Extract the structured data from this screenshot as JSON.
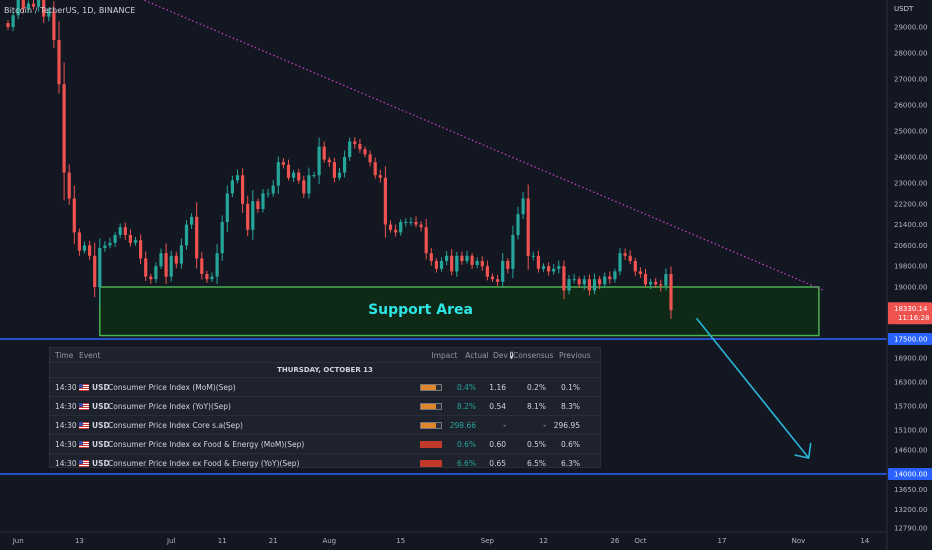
{
  "symbol": {
    "title": "Bitcoin / TetherUS, 1D, BINANCE"
  },
  "chart_data": {
    "type": "candlestick",
    "currency": "USDT",
    "y_ticks": [
      29000,
      28000,
      27000,
      26000,
      25000,
      24000,
      23000,
      22200,
      21400,
      20600,
      19800,
      19000,
      16900,
      16300,
      15700,
      15100,
      14600,
      13650,
      13200,
      12790
    ],
    "y_tick_labels": [
      "29000.00",
      "28000.00",
      "27000.00",
      "26000.00",
      "25000.00",
      "24000.00",
      "23000.00",
      "22200.00",
      "21400.00",
      "20600.00",
      "19800.00",
      "19000.00",
      "16900.00",
      "16300.00",
      "15700.00",
      "15100.00",
      "14600.00",
      "13650.00",
      "13200.00",
      "12790.00"
    ],
    "x_ticks": [
      {
        "date": "2022-06-01",
        "label": "Jun"
      },
      {
        "date": "2022-06-13",
        "label": "13"
      },
      {
        "date": "2022-07-01",
        "label": "Jul"
      },
      {
        "date": "2022-07-11",
        "label": "11"
      },
      {
        "date": "2022-07-21",
        "label": "21"
      },
      {
        "date": "2022-08-01",
        "label": "Aug"
      },
      {
        "date": "2022-08-15",
        "label": "15"
      },
      {
        "date": "2022-09-01",
        "label": "Sep"
      },
      {
        "date": "2022-09-12",
        "label": "12"
      },
      {
        "date": "2022-09-26",
        "label": "26"
      },
      {
        "date": "2022-10-01",
        "label": "Oct"
      },
      {
        "date": "2022-10-17",
        "label": "17"
      },
      {
        "date": "2022-11-01",
        "label": "Nov"
      },
      {
        "date": "2022-11-14",
        "label": "14"
      }
    ],
    "first_date": "2022-05-30",
    "closes": [
      29000,
      29450,
      30050,
      29700,
      29900,
      29780,
      30400,
      29400,
      29600,
      28500,
      26800,
      23400,
      22400,
      21100,
      20400,
      20600,
      20200,
      19000,
      20500,
      20600,
      20700,
      21000,
      21300,
      21000,
      20700,
      20800,
      20100,
      19400,
      19300,
      19800,
      20300,
      19400,
      20200,
      19900,
      20600,
      21400,
      21700,
      20100,
      19500,
      19300,
      19400,
      20300,
      21500,
      22600,
      23100,
      23300,
      22200,
      21200,
      22300,
      22000,
      22600,
      22600,
      22900,
      23800,
      23700,
      23200,
      23400,
      23100,
      22600,
      23300,
      23300,
      24400,
      23900,
      23800,
      23200,
      23400,
      24000,
      24600,
      24500,
      24300,
      24100,
      23800,
      23300,
      23200,
      21400,
      21200,
      21100,
      21500,
      21500,
      21500,
      21400,
      21300,
      20300,
      20000,
      19700,
      20000,
      20200,
      19600,
      20200,
      20000,
      20200,
      19850,
      20000,
      19800,
      19400,
      19300,
      19200,
      20000,
      19700,
      21000,
      21800,
      22400,
      20200,
      20200,
      19700,
      19800,
      19600,
      19700,
      19800,
      18900,
      19300,
      19300,
      19100,
      19300,
      18900,
      19300,
      19100,
      19400,
      19300,
      19600,
      20300,
      20200,
      20000,
      19600,
      19500,
      19100,
      19200,
      19100,
      19050,
      19500
    ],
    "last_close": 18330.14,
    "last_close_label": "18330.14",
    "countdown": "11:16:28",
    "trendline": {
      "from": {
        "date": "2022-06-07",
        "price": 31600
      },
      "to": {
        "date": "2022-11-06",
        "price": 18900
      }
    },
    "support_zone": {
      "from_date": "2022-06-17",
      "to_date": "2022-11-05",
      "top": 19000,
      "bottom": 17600,
      "label": "Support Area"
    },
    "horizontal_lines": [
      {
        "price": 17500,
        "label": "17500.00"
      },
      {
        "price": 14000,
        "label": "14000.00"
      }
    ],
    "arrow_projection": {
      "from": {
        "date": "2022-10-12",
        "price": 18100
      },
      "to": {
        "date": "2022-11-03",
        "price": 14400
      }
    }
  },
  "calendar": {
    "headers": {
      "time": "Time",
      "event": "Event",
      "impact": "Impact",
      "actual": "Actual",
      "dev": "Dev",
      "consensus": "Consensus",
      "previous": "Previous"
    },
    "day": "THURSDAY, OCTOBER 13",
    "rows": [
      {
        "time": "14:30",
        "currency": "USD",
        "event": "Consumer Price Index (MoM)(Sep)",
        "impact": "medium",
        "actual": "0.4%",
        "dev": "1.16",
        "consensus": "0.2%",
        "previous": "0.1%"
      },
      {
        "time": "14:30",
        "currency": "USD",
        "event": "Consumer Price Index (YoY)(Sep)",
        "impact": "medium",
        "actual": "8.2%",
        "dev": "0.54",
        "consensus": "8.1%",
        "previous": "8.3%"
      },
      {
        "time": "14:30",
        "currency": "USD",
        "event": "Consumer Price Index Core s.a(Sep)",
        "impact": "medium",
        "actual": "298.66",
        "dev": "-",
        "consensus": "-",
        "previous": "296.95"
      },
      {
        "time": "14:30",
        "currency": "USD",
        "event": "Consumer Price Index ex Food & Energy (MoM)(Sep)",
        "impact": "high",
        "actual": "0.6%",
        "dev": "0.60",
        "consensus": "0.5%",
        "previous": "0.6%"
      },
      {
        "time": "14:30",
        "currency": "USD",
        "event": "Consumer Price Index ex Food & Energy (YoY)(Sep)",
        "impact": "high",
        "actual": "6.6%",
        "dev": "0.65",
        "consensus": "6.5%",
        "previous": "6.3%"
      }
    ]
  },
  "colors": {
    "background": "#131722",
    "up": "#26a69a",
    "down": "#ef5350",
    "support_fill": "#0e2a16",
    "support_border": "#4caf50",
    "support_text": "#2ee6e6",
    "trendline": "#d040c8",
    "level_line": "#2962ff",
    "arrow": "#29b6d6"
  }
}
